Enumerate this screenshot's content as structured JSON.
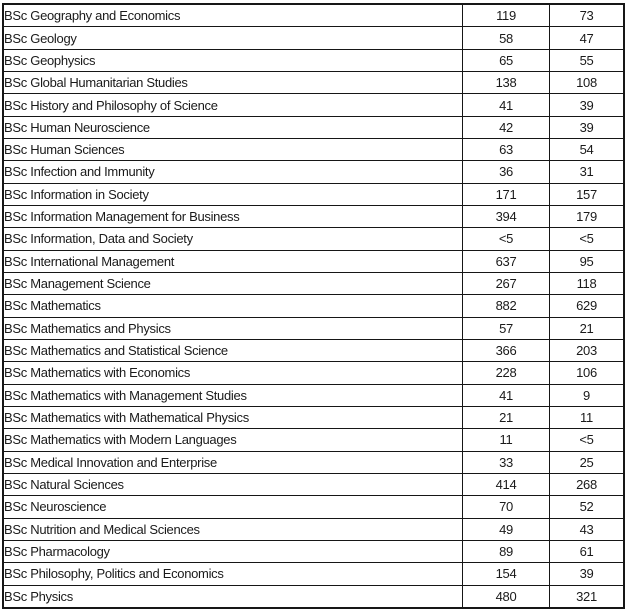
{
  "table": {
    "columns": [
      "program",
      "value_1",
      "value_2"
    ],
    "rows": [
      [
        "BSc Geography and Economics",
        "119",
        "73"
      ],
      [
        "BSc Geology",
        "58",
        "47"
      ],
      [
        "BSc Geophysics",
        "65",
        "55"
      ],
      [
        "BSc Global Humanitarian Studies",
        "138",
        "108"
      ],
      [
        "BSc History and Philosophy of Science",
        "41",
        "39"
      ],
      [
        "BSc Human Neuroscience",
        "42",
        "39"
      ],
      [
        "BSc Human Sciences",
        "63",
        "54"
      ],
      [
        "BSc Infection and Immunity",
        "36",
        "31"
      ],
      [
        "BSc Information in Society",
        "171",
        "157"
      ],
      [
        "BSc Information Management for Business",
        "394",
        "179"
      ],
      [
        "BSc Information, Data and Society",
        "<5",
        "<5"
      ],
      [
        "BSc International Management",
        "637",
        "95"
      ],
      [
        "BSc Management Science",
        "267",
        "118"
      ],
      [
        "BSc Mathematics",
        "882",
        "629"
      ],
      [
        "BSc Mathematics and Physics",
        "57",
        "21"
      ],
      [
        "BSc Mathematics and Statistical Science",
        "366",
        "203"
      ],
      [
        "BSc Mathematics with Economics",
        "228",
        "106"
      ],
      [
        "BSc Mathematics with Management Studies",
        "41",
        "9"
      ],
      [
        "BSc Mathematics with Mathematical Physics",
        "21",
        "11"
      ],
      [
        "BSc Mathematics with Modern Languages",
        "11",
        "<5"
      ],
      [
        "BSc Medical Innovation and Enterprise",
        "33",
        "25"
      ],
      [
        "BSc Natural Sciences",
        "414",
        "268"
      ],
      [
        "BSc Neuroscience",
        "70",
        "52"
      ],
      [
        "BSc Nutrition and Medical Sciences",
        "49",
        "43"
      ],
      [
        "BSc Pharmacology",
        "89",
        "61"
      ],
      [
        "BSc Philosophy, Politics and Economics",
        "154",
        "39"
      ],
      [
        "BSc Physics",
        "480",
        "321"
      ]
    ],
    "colors": {
      "border": "#161616",
      "text": "#1a1a1a",
      "background": "#ffffff"
    }
  }
}
